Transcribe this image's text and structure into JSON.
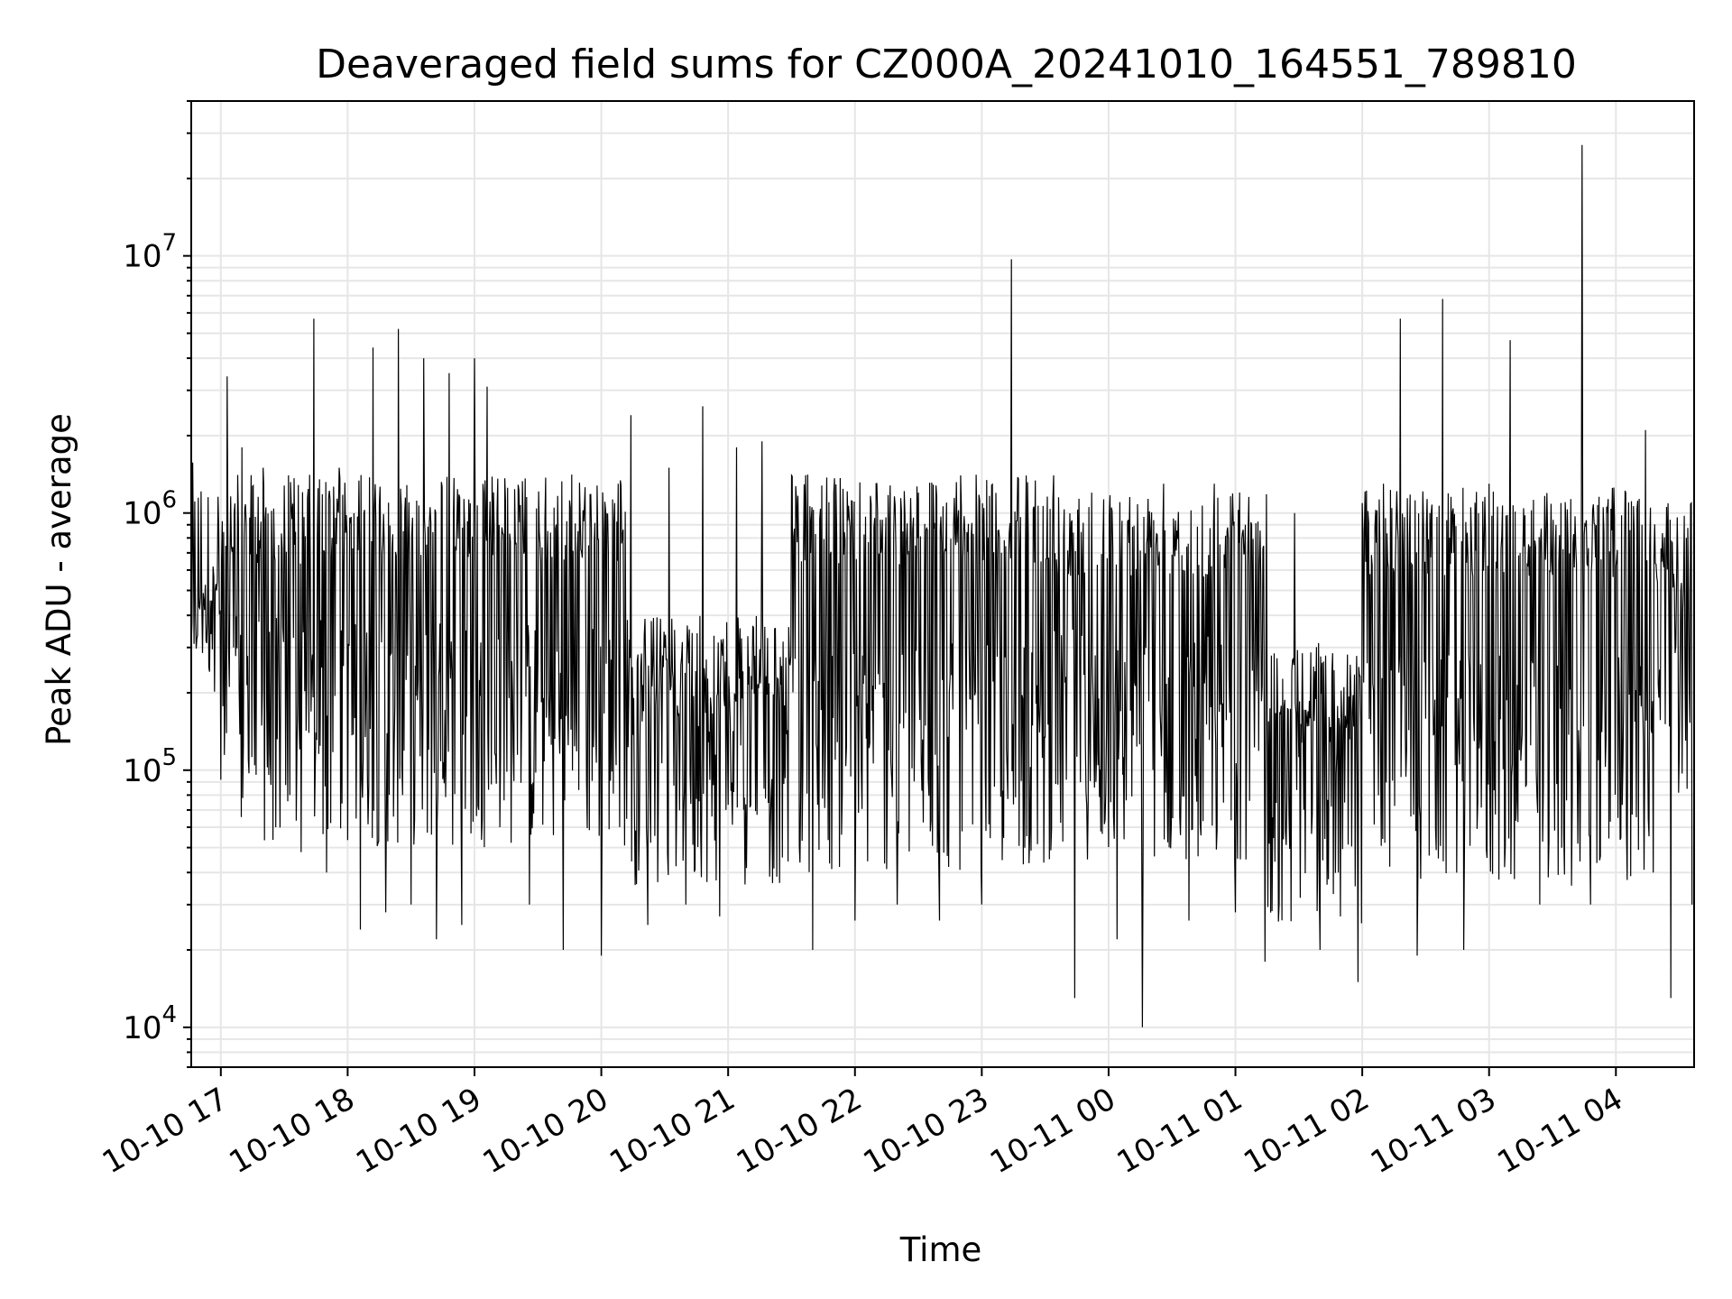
{
  "chart_data": {
    "type": "line",
    "title": "Deaveraged field sums for CZ000A_20241010_164551_789810",
    "xlabel": "Time",
    "ylabel": "Peak ADU - average",
    "yscale": "log",
    "ylim": [
      7000,
      40000000
    ],
    "xlim": [
      "2024-10-10 16:46",
      "2024-10-11 04:37"
    ],
    "grid": true,
    "line_color": "#000000",
    "grid_color": "#e6e6e6",
    "x_tick_labels": [
      "10-10 17",
      "10-10 18",
      "10-10 19",
      "10-10 20",
      "10-10 21",
      "10-10 22",
      "10-10 23",
      "10-11 00",
      "10-11 01",
      "10-11 02",
      "10-11 03",
      "10-11 04"
    ],
    "y_ticks": [
      {
        "value": 10000,
        "base": "10",
        "exp": "4"
      },
      {
        "value": 100000,
        "base": "10",
        "exp": "5"
      },
      {
        "value": 1000000,
        "base": "10",
        "exp": "6"
      },
      {
        "value": 10000000,
        "base": "10",
        "exp": "7"
      }
    ],
    "series": [
      {
        "points": [
          [
            "2024-10-10 16:46",
            300000
          ],
          [
            "2024-10-10 16:52",
            450000
          ],
          [
            "2024-10-10 16:58",
            500000
          ],
          [
            "2024-10-10 17:03",
            3400000
          ],
          [
            "2024-10-10 17:06",
            300000
          ],
          [
            "2024-10-10 17:10",
            1800000
          ],
          [
            "2024-10-10 17:13",
            110000
          ],
          [
            "2024-10-10 17:20",
            1500000
          ],
          [
            "2024-10-10 17:26",
            60000
          ],
          [
            "2024-10-10 17:32",
            1400000
          ],
          [
            "2024-10-10 17:38",
            48000
          ],
          [
            "2024-10-10 17:44",
            5700000
          ],
          [
            "2024-10-10 17:50",
            40000
          ],
          [
            "2024-10-10 17:56",
            1500000
          ],
          [
            "2024-10-10 18:06",
            24000
          ],
          [
            "2024-10-10 18:12",
            4400000
          ],
          [
            "2024-10-10 18:18",
            28000
          ],
          [
            "2024-10-10 18:24",
            5200000
          ],
          [
            "2024-10-10 18:30",
            30000
          ],
          [
            "2024-10-10 18:36",
            4000000
          ],
          [
            "2024-10-10 18:42",
            22000
          ],
          [
            "2024-10-10 18:48",
            3500000
          ],
          [
            "2024-10-10 18:54",
            25000
          ],
          [
            "2024-10-10 19:00",
            4000000
          ],
          [
            "2024-10-10 19:02",
            70000
          ],
          [
            "2024-10-10 19:06",
            3100000
          ],
          [
            "2024-10-10 19:12",
            60000
          ],
          [
            "2024-10-10 19:18",
            200000
          ],
          [
            "2024-10-10 19:26",
            30000
          ],
          [
            "2024-10-10 19:34",
            160000
          ],
          [
            "2024-10-10 19:42",
            20000
          ],
          [
            "2024-10-10 19:50",
            1000000
          ],
          [
            "2024-10-10 20:00",
            19000
          ],
          [
            "2024-10-10 20:08",
            1300000
          ],
          [
            "2024-10-10 20:14",
            2400000
          ],
          [
            "2024-10-10 20:22",
            25000
          ],
          [
            "2024-10-10 20:32",
            1500000
          ],
          [
            "2024-10-10 20:40",
            30000
          ],
          [
            "2024-10-10 20:48",
            2600000
          ],
          [
            "2024-10-10 20:56",
            27000
          ],
          [
            "2024-10-10 21:04",
            1800000
          ],
          [
            "2024-10-10 21:16",
            1900000
          ],
          [
            "2024-10-10 21:24",
            180000
          ],
          [
            "2024-10-10 21:30",
            1400000
          ],
          [
            "2024-10-10 21:40",
            20000
          ],
          [
            "2024-10-10 21:50",
            1200000
          ],
          [
            "2024-10-10 22:00",
            26000
          ],
          [
            "2024-10-10 22:10",
            1300000
          ],
          [
            "2024-10-10 22:20",
            30000
          ],
          [
            "2024-10-10 22:30",
            1200000
          ],
          [
            "2024-10-10 22:40",
            26000
          ],
          [
            "2024-10-10 22:50",
            1400000
          ],
          [
            "2024-10-10 23:00",
            30000
          ],
          [
            "2024-10-10 23:14",
            9700000
          ],
          [
            "2024-10-10 23:20",
            300000
          ],
          [
            "2024-10-10 23:34",
            1400000
          ],
          [
            "2024-10-10 23:44",
            13000
          ],
          [
            "2024-10-10 23:52",
            1200000
          ],
          [
            "2024-10-11 00:04",
            22000
          ],
          [
            "2024-10-11 00:16",
            10000
          ],
          [
            "2024-10-11 00:26",
            1300000
          ],
          [
            "2024-10-11 00:38",
            26000
          ],
          [
            "2024-10-11 00:50",
            1300000
          ],
          [
            "2024-10-11 01:00",
            28000
          ],
          [
            "2024-10-11 01:14",
            18000
          ],
          [
            "2024-10-11 01:28",
            1000000
          ],
          [
            "2024-10-11 01:40",
            20000
          ],
          [
            "2024-10-11 01:58",
            15000
          ],
          [
            "2024-10-11 02:10",
            1300000
          ],
          [
            "2024-10-11 02:18",
            5700000
          ],
          [
            "2024-10-11 02:26",
            19000
          ],
          [
            "2024-10-11 02:38",
            6800000
          ],
          [
            "2024-10-11 02:48",
            20000
          ],
          [
            "2024-10-11 03:00",
            1300000
          ],
          [
            "2024-10-11 03:10",
            4700000
          ],
          [
            "2024-10-11 03:24",
            30000
          ],
          [
            "2024-10-11 03:44",
            27000000
          ],
          [
            "2024-10-11 03:48",
            30000
          ],
          [
            "2024-10-11 03:56",
            1000000
          ],
          [
            "2024-10-11 04:06",
            1100000
          ],
          [
            "2024-10-11 04:14",
            2100000
          ],
          [
            "2024-10-11 04:26",
            13000
          ],
          [
            "2024-10-11 04:30",
            120000
          ],
          [
            "2024-10-11 04:36",
            30000
          ]
        ]
      }
    ]
  }
}
